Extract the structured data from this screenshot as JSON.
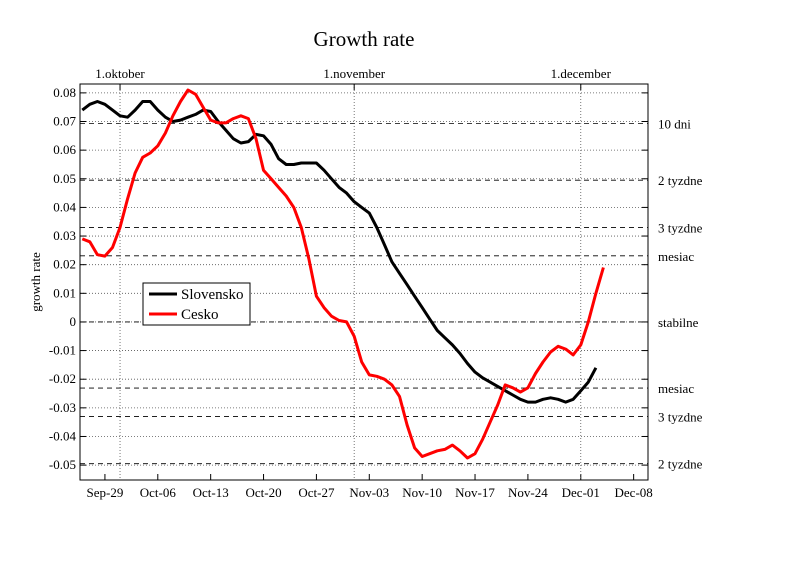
{
  "chart_data": {
    "type": "line",
    "title": "Growth rate",
    "y_label": "growth rate",
    "x": [
      -3,
      -2,
      -1,
      0,
      1,
      2,
      3,
      4,
      5,
      6,
      7,
      8,
      9,
      10,
      11,
      12,
      13,
      14,
      15,
      16,
      17,
      18,
      19,
      20,
      21,
      22,
      23,
      24,
      25,
      26,
      27,
      28,
      29,
      30,
      31,
      32,
      33,
      34,
      35,
      36,
      37,
      38,
      39,
      40,
      41,
      42,
      43,
      44,
      45,
      46,
      47,
      48,
      49,
      50,
      51,
      52,
      53,
      54,
      55,
      56,
      57,
      58,
      59,
      60,
      61,
      62,
      63,
      64,
      65,
      66
    ],
    "series": [
      {
        "name": "Slovensko",
        "color": "#000000",
        "values": [
          0.074,
          0.076,
          0.077,
          0.076,
          0.074,
          0.072,
          0.0715,
          0.074,
          0.077,
          0.077,
          0.074,
          0.0715,
          0.07,
          0.0705,
          0.0715,
          0.0725,
          0.074,
          0.0735,
          0.07,
          0.067,
          0.064,
          0.0625,
          0.063,
          0.0655,
          0.065,
          0.062,
          0.057,
          0.055,
          0.055,
          0.0555,
          0.0555,
          0.0555,
          0.053,
          0.05,
          0.047,
          0.045,
          0.042,
          0.04,
          0.038,
          0.033,
          0.027,
          0.021,
          0.017,
          0.013,
          0.009,
          0.005,
          0.001,
          -0.003,
          -0.0055,
          -0.008,
          -0.011,
          -0.0145,
          -0.0175,
          -0.0195,
          -0.021,
          -0.0225,
          -0.024,
          -0.0255,
          -0.027,
          -0.028,
          -0.028,
          -0.027,
          -0.0265,
          -0.027,
          -0.028,
          -0.027,
          -0.024,
          -0.021,
          -0.016,
          null
        ]
      },
      {
        "name": "Cesko",
        "color": "#ff0000",
        "values": [
          0.029,
          0.028,
          0.0235,
          0.023,
          0.026,
          0.033,
          0.043,
          0.052,
          0.0575,
          0.059,
          0.0615,
          0.066,
          0.072,
          0.077,
          0.081,
          0.0795,
          0.075,
          0.0705,
          0.0695,
          0.0695,
          0.071,
          0.072,
          0.071,
          0.064,
          0.053,
          0.05,
          0.047,
          0.044,
          0.04,
          0.033,
          0.022,
          0.009,
          0.005,
          0.002,
          0.0005,
          0.0,
          -0.005,
          -0.014,
          -0.0185,
          -0.019,
          -0.02,
          -0.022,
          -0.026,
          -0.036,
          -0.044,
          -0.047,
          -0.046,
          -0.045,
          -0.0445,
          -0.043,
          -0.045,
          -0.0475,
          -0.046,
          -0.041,
          -0.035,
          -0.029,
          -0.022,
          -0.023,
          -0.0245,
          -0.023,
          -0.018,
          -0.014,
          -0.0105,
          -0.0085,
          -0.0095,
          -0.0115,
          -0.008,
          0.0,
          0.01,
          0.019
        ]
      }
    ],
    "xlim": [
      -3.3,
      71.9
    ],
    "xticks": [
      {
        "value": 0,
        "label": "Sep-29"
      },
      {
        "value": 7,
        "label": "Oct-06"
      },
      {
        "value": 14,
        "label": "Oct-13"
      },
      {
        "value": 21,
        "label": "Oct-20"
      },
      {
        "value": 28,
        "label": "Oct-27"
      },
      {
        "value": 35,
        "label": "Nov-03"
      },
      {
        "value": 42,
        "label": "Nov-10"
      },
      {
        "value": 49,
        "label": "Nov-17"
      },
      {
        "value": 56,
        "label": "Nov-24"
      },
      {
        "value": 63,
        "label": "Dec-01"
      },
      {
        "value": 70,
        "label": "Dec-08"
      }
    ],
    "top_xticks": [
      {
        "value": 2,
        "label": "1.oktober"
      },
      {
        "value": 33,
        "label": "1.november"
      },
      {
        "value": 63,
        "label": "1.december"
      }
    ],
    "ylim": [
      -0.0552,
      0.0831
    ],
    "yticks": [
      0.08,
      0.07,
      0.06,
      0.05,
      0.04,
      0.03,
      0.02,
      0.01,
      0,
      -0.01,
      -0.02,
      -0.03,
      -0.04,
      -0.05
    ],
    "reference_lines": [
      {
        "value": 0.0693,
        "label": "10 dni"
      },
      {
        "value": 0.0495,
        "label": "2 tyzdne"
      },
      {
        "value": 0.033,
        "label": "3 tyzdne"
      },
      {
        "value": 0.0231,
        "label": "mesiac"
      },
      {
        "value": 0,
        "label": "stabilne"
      },
      {
        "value": -0.0231,
        "label": "mesiac"
      },
      {
        "value": -0.033,
        "label": "3 tyzdne"
      },
      {
        "value": -0.0495,
        "label": "2 tyzdne"
      }
    ],
    "grid": true,
    "legend": "center-left"
  }
}
